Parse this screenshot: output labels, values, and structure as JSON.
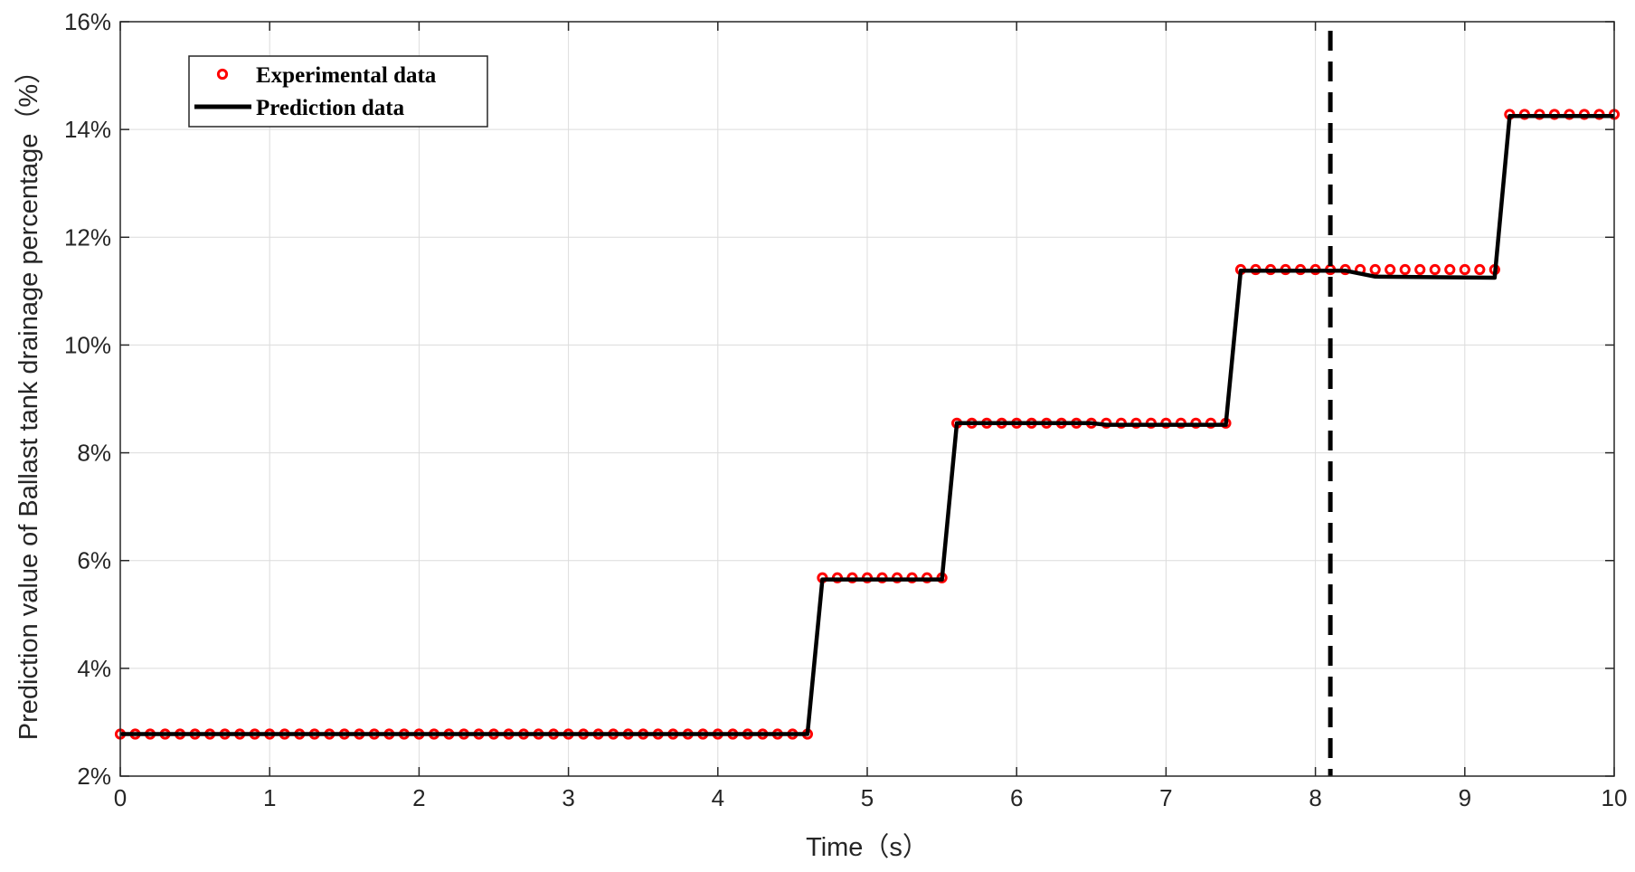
{
  "chart_data": {
    "type": "line",
    "title": "",
    "xlabel": "Time（s）",
    "ylabel": "Prediction value of Ballast tank drainage percentage（%）",
    "xlim": [
      0,
      10
    ],
    "ylim": [
      2,
      16
    ],
    "x_ticks": [
      0,
      1,
      2,
      3,
      4,
      5,
      6,
      7,
      8,
      9,
      10
    ],
    "y_ticks": [
      2,
      4,
      6,
      8,
      10,
      12,
      14,
      16
    ],
    "y_tick_labels": [
      "2%",
      "4%",
      "6%",
      "8%",
      "10%",
      "12%",
      "14%",
      "16%"
    ],
    "grid": true,
    "legend_position": "top-left",
    "vertical_marker_x": 8.1,
    "series": [
      {
        "name": "Experimental data",
        "style": "markers",
        "color": "#ff0000",
        "segments": [
          {
            "x_start": 0.0,
            "x_end": 4.6,
            "step": 0.1,
            "y": 2.78
          },
          {
            "x_start": 4.7,
            "x_end": 5.5,
            "step": 0.1,
            "y": 5.68
          },
          {
            "x_start": 5.6,
            "x_end": 7.4,
            "step": 0.1,
            "y": 8.55
          },
          {
            "x_start": 7.5,
            "x_end": 9.2,
            "step": 0.1,
            "y": 11.4
          },
          {
            "x_start": 9.3,
            "x_end": 10.0,
            "step": 0.1,
            "y": 14.28
          }
        ]
      },
      {
        "name": "Prediction data",
        "style": "line",
        "color": "#000000",
        "x": [
          0.0,
          4.6,
          4.7,
          5.5,
          5.6,
          6.5,
          6.6,
          7.4,
          7.5,
          8.2,
          8.4,
          9.2,
          9.3,
          10.0
        ],
        "y": [
          2.78,
          2.78,
          5.65,
          5.65,
          8.55,
          8.55,
          8.52,
          8.52,
          11.38,
          11.38,
          11.27,
          11.25,
          14.25,
          14.25
        ]
      }
    ]
  }
}
